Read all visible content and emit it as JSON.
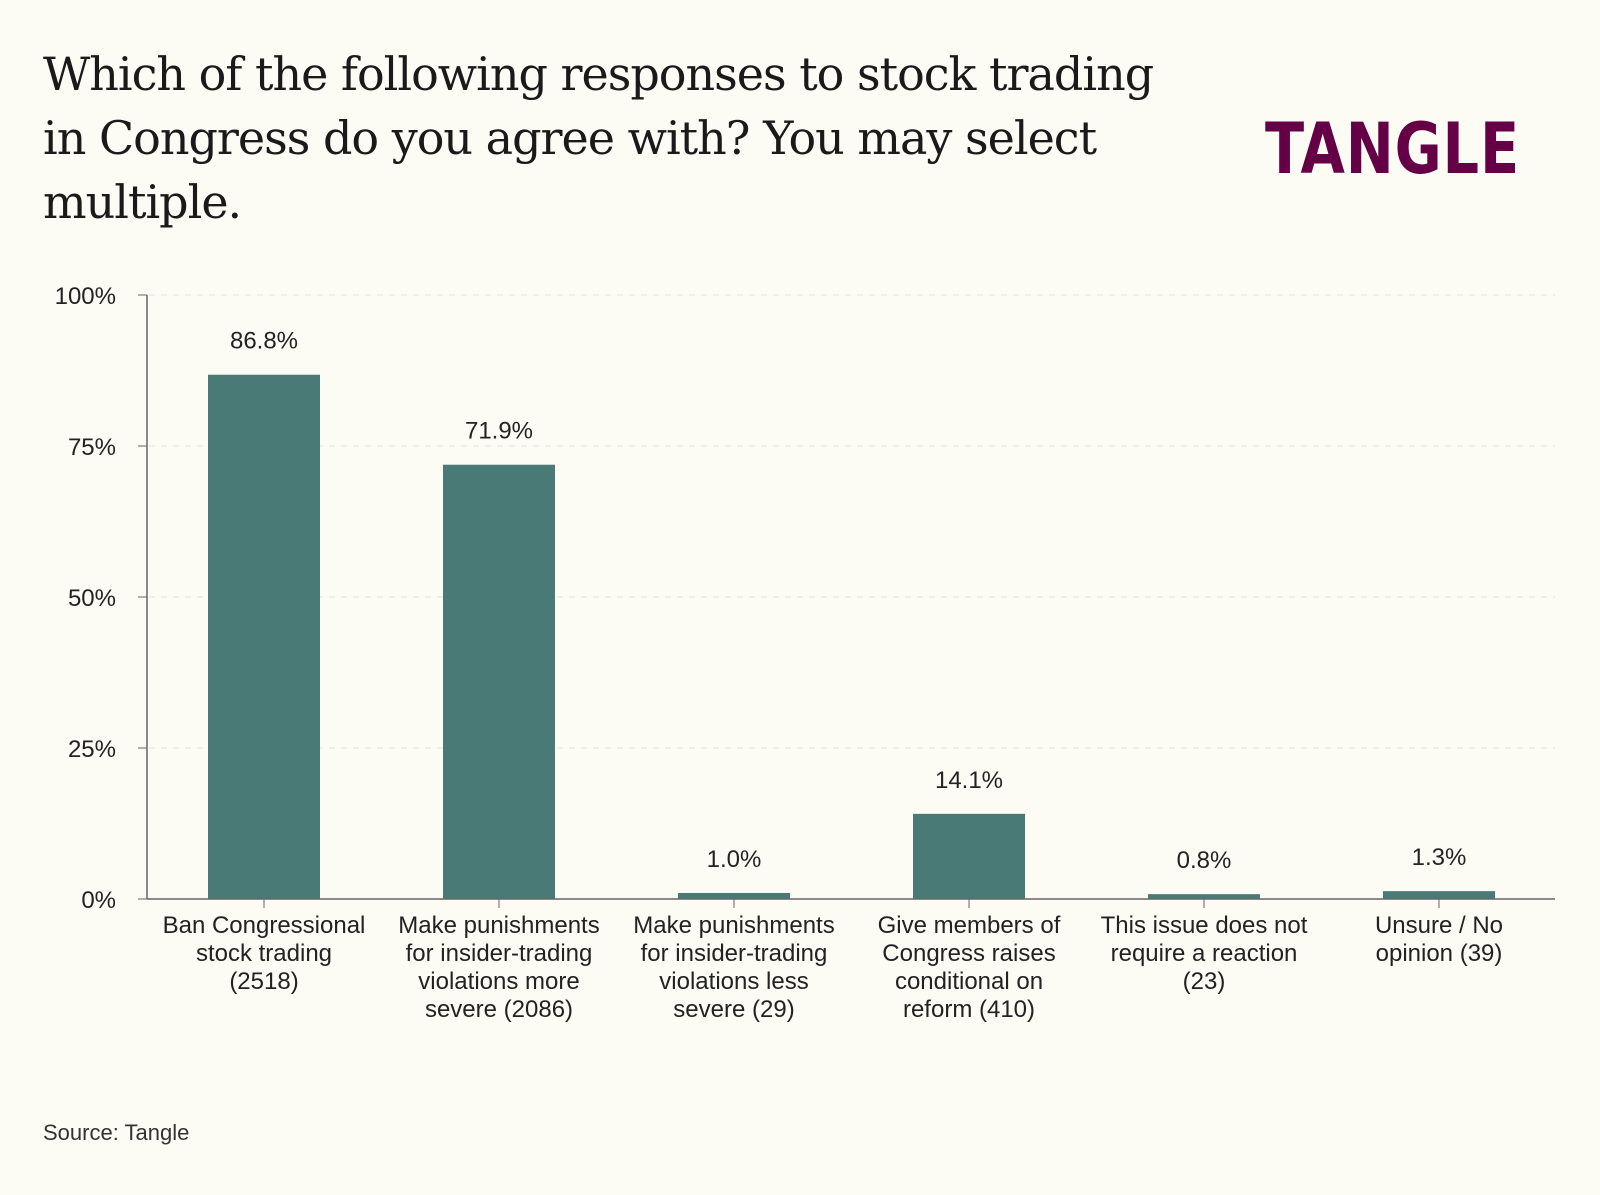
{
  "logo": "TANGLE",
  "source": "Source: Tangle",
  "colors": {
    "bar": "#4a7a76",
    "logo": "#650046",
    "background": "#fcfbf4"
  },
  "chart_data": {
    "type": "bar",
    "title": "Which of the following responses to stock trading in Congress do you agree with? You may select multiple.",
    "xlabel": "",
    "ylabel": "",
    "ylim": [
      0,
      100
    ],
    "yticks": [
      0,
      25,
      50,
      75,
      100
    ],
    "ytick_labels": [
      "0%",
      "25%",
      "50%",
      "75%",
      "100%"
    ],
    "grid": true,
    "categories": [
      [
        "Ban Congressional",
        "stock trading",
        "(2518)"
      ],
      [
        "Make punishments",
        "for insider-trading",
        "violations more",
        "severe (2086)"
      ],
      [
        "Make punishments",
        "for insider-trading",
        "violations less",
        "severe (29)"
      ],
      [
        "Give members of",
        "Congress raises",
        "conditional on",
        "reform (410)"
      ],
      [
        "This issue does not",
        "require a reaction",
        "(23)"
      ],
      [
        "Unsure / No",
        "opinion (39)"
      ]
    ],
    "values": [
      86.8,
      71.9,
      1.0,
      14.1,
      0.8,
      1.3
    ],
    "data_labels": [
      "86.8%",
      "71.9%",
      "1.0%",
      "14.1%",
      "0.8%",
      "1.3%"
    ]
  }
}
